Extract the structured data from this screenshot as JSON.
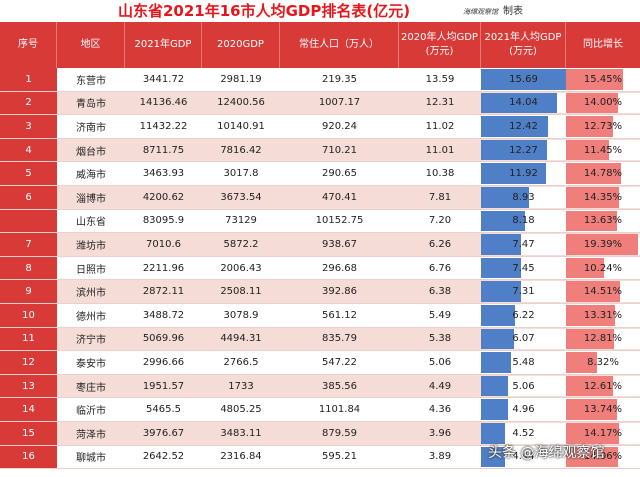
{
  "title": "山东省2021年16市人均GDP排名表(亿元)",
  "maker": {
    "stamp": "海绵观察馆",
    "suffix": "制表"
  },
  "headers": [
    "序号",
    "地区",
    "2021年GDP",
    "2020GDP",
    "常住人口（万人）",
    "2020年人均GDP\n(万元)",
    "2021年人均GDP\n(万元)",
    "同比增长"
  ],
  "rows": [
    {
      "seq": "1",
      "region": "东营市",
      "gdp2021": "3441.72",
      "gdp2020": "2981.19",
      "pop": "219.35",
      "pc2020": "13.59",
      "pc2021": "15.69",
      "pc2021_val": 15.69,
      "growth": "15.45%",
      "growth_val": 15.45
    },
    {
      "seq": "2",
      "region": "青岛市",
      "gdp2021": "14136.46",
      "gdp2020": "12400.56",
      "pop": "1007.17",
      "pc2020": "12.31",
      "pc2021": "14.04",
      "pc2021_val": 14.04,
      "growth": "14.00%",
      "growth_val": 14.0
    },
    {
      "seq": "3",
      "region": "济南市",
      "gdp2021": "11432.22",
      "gdp2020": "10140.91",
      "pop": "920.24",
      "pc2020": "11.02",
      "pc2021": "12.42",
      "pc2021_val": 12.42,
      "growth": "12.73%",
      "growth_val": 12.73
    },
    {
      "seq": "4",
      "region": "烟台市",
      "gdp2021": "8711.75",
      "gdp2020": "7816.42",
      "pop": "710.21",
      "pc2020": "11.01",
      "pc2021": "12.27",
      "pc2021_val": 12.27,
      "growth": "11.45%",
      "growth_val": 11.45
    },
    {
      "seq": "5",
      "region": "威海市",
      "gdp2021": "3463.93",
      "gdp2020": "3017.8",
      "pop": "290.65",
      "pc2020": "10.38",
      "pc2021": "11.92",
      "pc2021_val": 11.92,
      "growth": "14.78%",
      "growth_val": 14.78
    },
    {
      "seq": "6",
      "region": "淄博市",
      "gdp2021": "4200.62",
      "gdp2020": "3673.54",
      "pop": "470.41",
      "pc2020": "7.81",
      "pc2021": "8.93",
      "pc2021_val": 8.93,
      "growth": "14.35%",
      "growth_val": 14.35
    },
    {
      "seq": "",
      "region": "山东省",
      "gdp2021": "83095.9",
      "gdp2020": "73129",
      "pop": "10152.75",
      "pc2020": "7.20",
      "pc2021": "8.18",
      "pc2021_val": 8.18,
      "growth": "13.63%",
      "growth_val": 13.63
    },
    {
      "seq": "7",
      "region": "潍坊市",
      "gdp2021": "7010.6",
      "gdp2020": "5872.2",
      "pop": "938.67",
      "pc2020": "6.26",
      "pc2021": "7.47",
      "pc2021_val": 7.47,
      "growth": "19.39%",
      "growth_val": 19.39
    },
    {
      "seq": "8",
      "region": "日照市",
      "gdp2021": "2211.96",
      "gdp2020": "2006.43",
      "pop": "296.68",
      "pc2020": "6.76",
      "pc2021": "7.45",
      "pc2021_val": 7.45,
      "growth": "10.24%",
      "growth_val": 10.24
    },
    {
      "seq": "9",
      "region": "滨州市",
      "gdp2021": "2872.11",
      "gdp2020": "2508.11",
      "pop": "392.86",
      "pc2020": "6.38",
      "pc2021": "7.31",
      "pc2021_val": 7.31,
      "growth": "14.51%",
      "growth_val": 14.51
    },
    {
      "seq": "10",
      "region": "德州市",
      "gdp2021": "3488.72",
      "gdp2020": "3078.9",
      "pop": "561.12",
      "pc2020": "5.49",
      "pc2021": "6.22",
      "pc2021_val": 6.22,
      "growth": "13.31%",
      "growth_val": 13.31
    },
    {
      "seq": "11",
      "region": "济宁市",
      "gdp2021": "5069.96",
      "gdp2020": "4494.31",
      "pop": "835.79",
      "pc2020": "5.38",
      "pc2021": "6.07",
      "pc2021_val": 6.07,
      "growth": "12.81%",
      "growth_val": 12.81
    },
    {
      "seq": "12",
      "region": "泰安市",
      "gdp2021": "2996.66",
      "gdp2020": "2766.5",
      "pop": "547.22",
      "pc2020": "5.06",
      "pc2021": "5.48",
      "pc2021_val": 5.48,
      "growth": "8.32%",
      "growth_val": 8.32
    },
    {
      "seq": "13",
      "region": "枣庄市",
      "gdp2021": "1951.57",
      "gdp2020": "1733",
      "pop": "385.56",
      "pc2020": "4.49",
      "pc2021": "5.06",
      "pc2021_val": 5.06,
      "growth": "12.61%",
      "growth_val": 12.61
    },
    {
      "seq": "14",
      "region": "临沂市",
      "gdp2021": "5465.5",
      "gdp2020": "4805.25",
      "pop": "1101.84",
      "pc2020": "4.36",
      "pc2021": "4.96",
      "pc2021_val": 4.96,
      "growth": "13.74%",
      "growth_val": 13.74
    },
    {
      "seq": "15",
      "region": "菏泽市",
      "gdp2021": "3976.67",
      "gdp2020": "3483.11",
      "pop": "879.59",
      "pc2020": "3.96",
      "pc2021": "4.52",
      "pc2021_val": 4.52,
      "growth": "14.17%",
      "growth_val": 14.17
    },
    {
      "seq": "16",
      "region": "聊城市",
      "gdp2021": "2642.52",
      "gdp2020": "2316.84",
      "pop": "595.21",
      "pc2020": "3.89",
      "pc2021": "4.44",
      "pc2021_val": 4.44,
      "growth": "14.06%",
      "growth_val": 14.06
    }
  ],
  "data_bars": {
    "pc2021_max": 15.69,
    "growth_max": 19.39
  },
  "colors": {
    "header_bg": "#d83a38",
    "title_red": "#e8161b",
    "blue_bar": "#4f7fc6",
    "red_bar": "#f07f7c",
    "row_alt": "#f5dcd6"
  },
  "watermark": "头条 @海绵观察馆"
}
